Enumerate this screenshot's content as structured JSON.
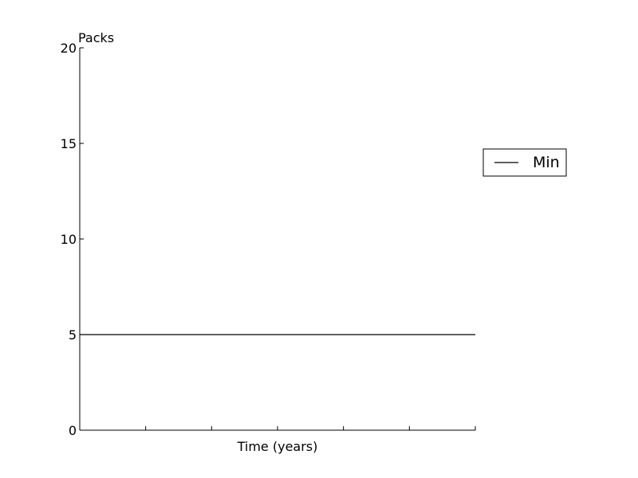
{
  "chart_data": {
    "type": "line",
    "title": "",
    "xlabel": "Time (years)",
    "ylabel": "Packs",
    "xlim": [
      0,
      6
    ],
    "ylim": [
      0,
      20
    ],
    "x_tick_values": [
      0,
      1,
      2,
      3,
      4,
      5,
      6
    ],
    "y_ticks": [
      0,
      5,
      10,
      15,
      20
    ],
    "grid": false,
    "legend_position": "right",
    "series": [
      {
        "name": "Min",
        "color": "#000000",
        "x": [
          0,
          6
        ],
        "y": [
          5,
          5
        ]
      }
    ]
  }
}
